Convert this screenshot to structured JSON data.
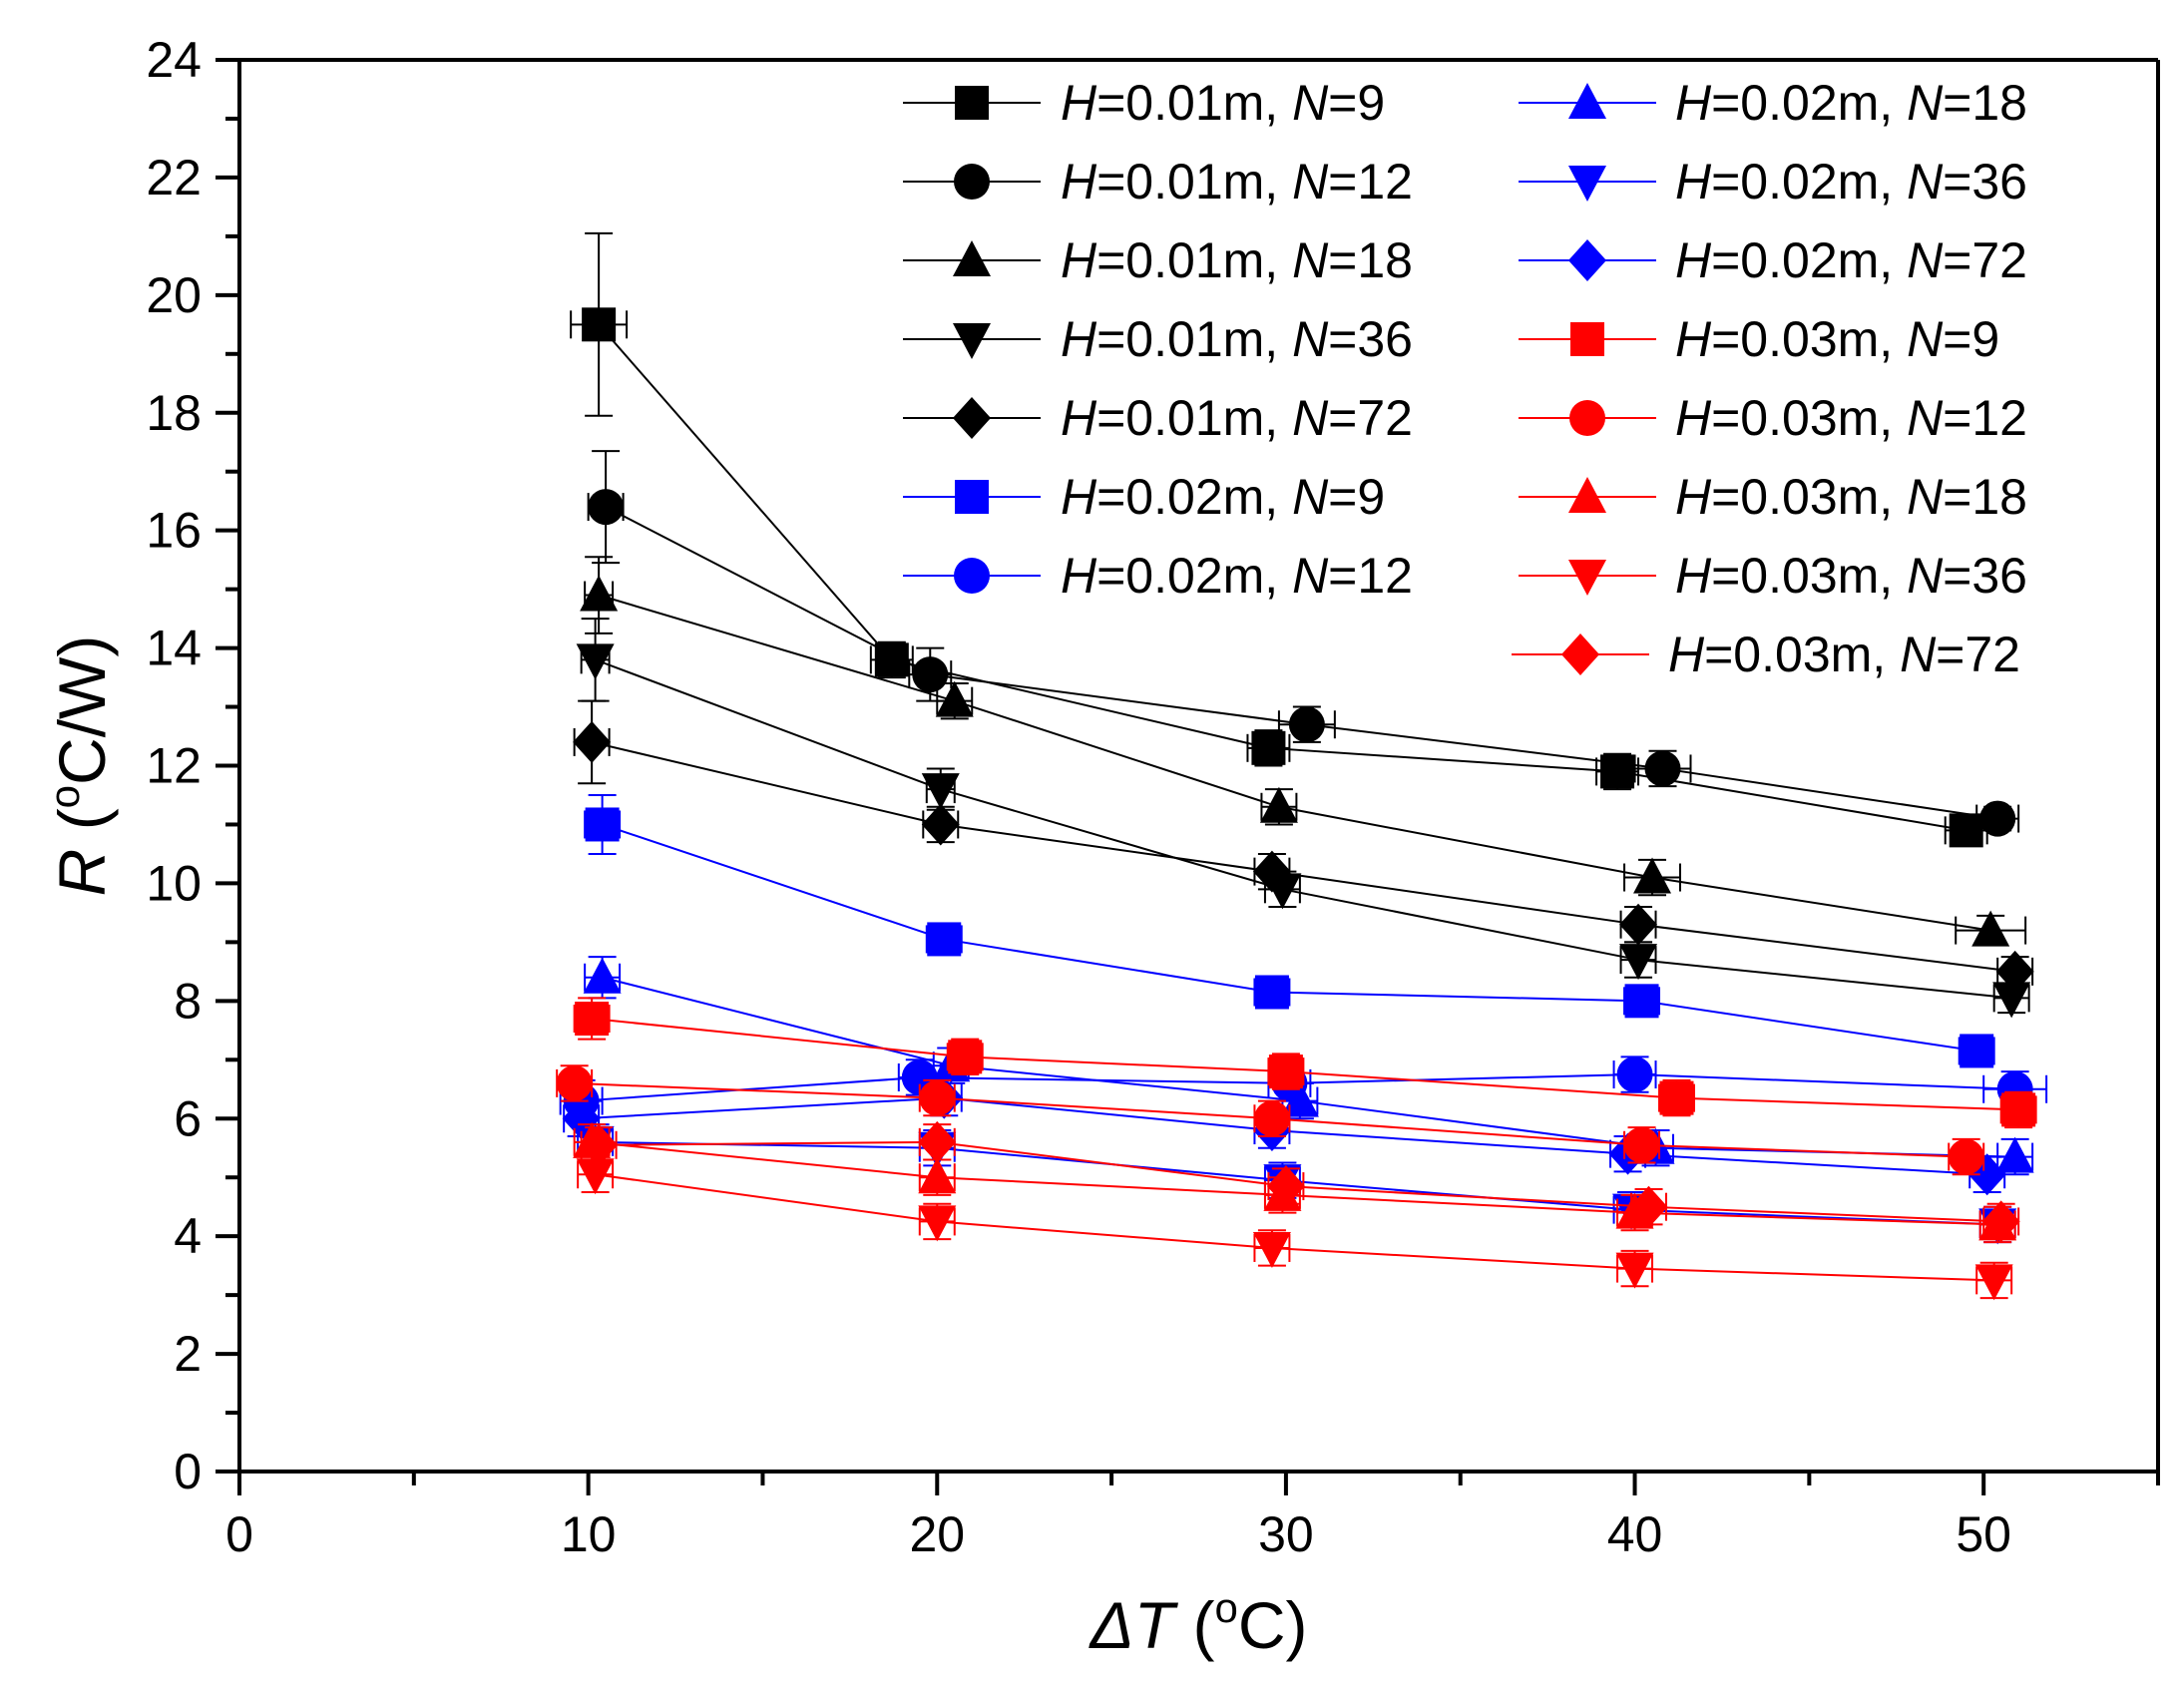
{
  "chart_data": {
    "type": "scatter",
    "xlabel": "ΔT (°C)",
    "ylabel": "R (°C/W)",
    "xlim": [
      0,
      55
    ],
    "ylim": [
      0,
      24
    ],
    "x_ticks": [
      0,
      10,
      20,
      30,
      40,
      50
    ],
    "y_ticks": [
      0,
      2,
      4,
      6,
      8,
      10,
      12,
      14,
      16,
      18,
      20,
      22,
      24
    ],
    "legend_position": "top-right",
    "colors": {
      "H=0.01m": "#000000",
      "H=0.02m": "#0000ff",
      "H=0.03m": "#ff0000"
    },
    "series": [
      {
        "name": "H=0.01m, N=9",
        "H": "0.01m",
        "N": "9",
        "color": "#000000",
        "marker": "square",
        "points": [
          {
            "x": 10.3,
            "y": 19.5,
            "yerr": 1.55,
            "xerr": 0.8
          },
          {
            "x": 18.7,
            "y": 13.8,
            "yerr": 0.3,
            "xerr": 0.6
          },
          {
            "x": 29.5,
            "y": 12.3,
            "yerr": 0.3,
            "xerr": 0.6
          },
          {
            "x": 39.5,
            "y": 11.9,
            "yerr": 0.3,
            "xerr": 0.6
          },
          {
            "x": 49.5,
            "y": 10.9,
            "yerr": 0.2,
            "xerr": 0.6
          }
        ]
      },
      {
        "name": "H=0.01m, N=12",
        "H": "0.01m",
        "N": "12",
        "color": "#000000",
        "marker": "circle",
        "points": [
          {
            "x": 10.5,
            "y": 16.4,
            "yerr": 0.95,
            "xerr": 0.5
          },
          {
            "x": 19.8,
            "y": 13.55,
            "yerr": 0.45,
            "xerr": 0.6
          },
          {
            "x": 30.6,
            "y": 12.7,
            "yerr": 0.3,
            "xerr": 0.8
          },
          {
            "x": 40.8,
            "y": 11.95,
            "yerr": 0.3,
            "xerr": 0.8
          },
          {
            "x": 50.4,
            "y": 11.1,
            "yerr": 0.2,
            "xerr": 0.6
          }
        ]
      },
      {
        "name": "H=0.01m, N=18",
        "H": "0.01m",
        "N": "18",
        "color": "#000000",
        "marker": "triangle-up",
        "points": [
          {
            "x": 10.3,
            "y": 14.9,
            "yerr": 0.65,
            "xerr": 0.4
          },
          {
            "x": 20.5,
            "y": 13.1,
            "yerr": 0.3,
            "xerr": 0.5
          },
          {
            "x": 29.8,
            "y": 11.3,
            "yerr": 0.3,
            "xerr": 0.5
          },
          {
            "x": 40.5,
            "y": 10.1,
            "yerr": 0.3,
            "xerr": 0.8
          },
          {
            "x": 50.2,
            "y": 9.2,
            "yerr": 0.25,
            "xerr": 1.0
          }
        ]
      },
      {
        "name": "H=0.01m, N=36",
        "H": "0.01m",
        "N": "36",
        "color": "#000000",
        "marker": "triangle-down",
        "points": [
          {
            "x": 10.2,
            "y": 13.8,
            "yerr": 0.7,
            "xerr": 0.4
          },
          {
            "x": 20.1,
            "y": 11.6,
            "yerr": 0.35,
            "xerr": 0.4
          },
          {
            "x": 29.9,
            "y": 9.9,
            "yerr": 0.3,
            "xerr": 0.5
          },
          {
            "x": 40.1,
            "y": 8.7,
            "yerr": 0.3,
            "xerr": 0.5
          },
          {
            "x": 50.8,
            "y": 8.05,
            "yerr": 0.25,
            "xerr": 0.5
          }
        ]
      },
      {
        "name": "H=0.01m, N=72",
        "H": "0.01m",
        "N": "72",
        "color": "#000000",
        "marker": "diamond",
        "points": [
          {
            "x": 10.1,
            "y": 12.4,
            "yerr": 0.7,
            "xerr": 0.5
          },
          {
            "x": 20.1,
            "y": 11.0,
            "yerr": 0.3,
            "xerr": 0.5
          },
          {
            "x": 29.6,
            "y": 10.2,
            "yerr": 0.3,
            "xerr": 0.5
          },
          {
            "x": 40.1,
            "y": 9.3,
            "yerr": 0.3,
            "xerr": 0.5
          },
          {
            "x": 50.9,
            "y": 8.5,
            "yerr": 0.25,
            "xerr": 0.5
          }
        ]
      },
      {
        "name": "H=0.02m, N=9",
        "H": "0.02m",
        "N": "9",
        "color": "#0000ff",
        "marker": "square",
        "points": [
          {
            "x": 10.4,
            "y": 11.0,
            "yerr": 0.5,
            "xerr": 0.5
          },
          {
            "x": 20.2,
            "y": 9.05,
            "yerr": 0.25,
            "xerr": 0.5
          },
          {
            "x": 29.6,
            "y": 8.15,
            "yerr": 0.2,
            "xerr": 0.5
          },
          {
            "x": 40.2,
            "y": 8.0,
            "yerr": 0.2,
            "xerr": 0.5
          },
          {
            "x": 49.8,
            "y": 7.15,
            "yerr": 0.2,
            "xerr": 0.5
          }
        ]
      },
      {
        "name": "H=0.02m, N=12",
        "H": "0.02m",
        "N": "12",
        "color": "#0000ff",
        "marker": "circle",
        "points": [
          {
            "x": 9.8,
            "y": 6.3,
            "yerr": 0.35,
            "xerr": 0.6
          },
          {
            "x": 19.5,
            "y": 6.7,
            "yerr": 0.3,
            "xerr": 0.6
          },
          {
            "x": 30.1,
            "y": 6.6,
            "yerr": 0.3,
            "xerr": 0.6
          },
          {
            "x": 40.0,
            "y": 6.75,
            "yerr": 0.3,
            "xerr": 0.6
          },
          {
            "x": 50.9,
            "y": 6.5,
            "yerr": 0.3,
            "xerr": 0.9
          }
        ]
      },
      {
        "name": "H=0.02m, N=18",
        "H": "0.02m",
        "N": "18",
        "color": "#0000ff",
        "marker": "triangle-up",
        "points": [
          {
            "x": 10.4,
            "y": 8.4,
            "yerr": 0.35,
            "xerr": 0.5
          },
          {
            "x": 20.4,
            "y": 6.9,
            "yerr": 0.3,
            "xerr": 0.5
          },
          {
            "x": 30.4,
            "y": 6.3,
            "yerr": 0.3,
            "xerr": 0.5
          },
          {
            "x": 40.6,
            "y": 5.5,
            "yerr": 0.3,
            "xerr": 0.5
          },
          {
            "x": 50.9,
            "y": 5.35,
            "yerr": 0.3,
            "xerr": 0.5
          }
        ]
      },
      {
        "name": "H=0.02m, N=36",
        "H": "0.02m",
        "N": "36",
        "color": "#0000ff",
        "marker": "triangle-down",
        "points": [
          {
            "x": 10.2,
            "y": 5.6,
            "yerr": 0.3,
            "xerr": 0.5
          },
          {
            "x": 20.0,
            "y": 5.5,
            "yerr": 0.3,
            "xerr": 0.5
          },
          {
            "x": 29.9,
            "y": 4.95,
            "yerr": 0.3,
            "xerr": 0.5
          },
          {
            "x": 39.9,
            "y": 4.45,
            "yerr": 0.3,
            "xerr": 0.5
          },
          {
            "x": 50.4,
            "y": 4.2,
            "yerr": 0.3,
            "xerr": 0.5
          }
        ]
      },
      {
        "name": "H=0.02m, N=72",
        "H": "0.02m",
        "N": "72",
        "color": "#0000ff",
        "marker": "diamond",
        "points": [
          {
            "x": 9.8,
            "y": 6.0,
            "yerr": 0.3,
            "xerr": 0.5
          },
          {
            "x": 20.2,
            "y": 6.35,
            "yerr": 0.3,
            "xerr": 0.5
          },
          {
            "x": 29.6,
            "y": 5.8,
            "yerr": 0.3,
            "xerr": 0.5
          },
          {
            "x": 39.8,
            "y": 5.4,
            "yerr": 0.3,
            "xerr": 0.5
          },
          {
            "x": 50.1,
            "y": 5.05,
            "yerr": 0.3,
            "xerr": 0.5
          }
        ]
      },
      {
        "name": "H=0.03m, N=9",
        "H": "0.03m",
        "N": "9",
        "color": "#ff0000",
        "marker": "square",
        "points": [
          {
            "x": 10.1,
            "y": 7.7,
            "yerr": 0.35,
            "xerr": 0.5
          },
          {
            "x": 20.8,
            "y": 7.05,
            "yerr": 0.3,
            "xerr": 0.5
          },
          {
            "x": 30.0,
            "y": 6.8,
            "yerr": 0.3,
            "xerr": 0.5
          },
          {
            "x": 41.2,
            "y": 6.35,
            "yerr": 0.3,
            "xerr": 0.5
          },
          {
            "x": 51.0,
            "y": 6.15,
            "yerr": 0.3,
            "xerr": 0.5
          }
        ]
      },
      {
        "name": "H=0.03m, N=12",
        "H": "0.03m",
        "N": "12",
        "color": "#ff0000",
        "marker": "circle",
        "points": [
          {
            "x": 9.6,
            "y": 6.6,
            "yerr": 0.3,
            "xerr": 0.5
          },
          {
            "x": 20.0,
            "y": 6.35,
            "yerr": 0.3,
            "xerr": 0.5
          },
          {
            "x": 29.6,
            "y": 6.0,
            "yerr": 0.3,
            "xerr": 0.5
          },
          {
            "x": 40.2,
            "y": 5.55,
            "yerr": 0.3,
            "xerr": 0.5
          },
          {
            "x": 49.5,
            "y": 5.35,
            "yerr": 0.3,
            "xerr": 0.5
          }
        ]
      },
      {
        "name": "H=0.03m, N=18",
        "H": "0.03m",
        "N": "18",
        "color": "#ff0000",
        "marker": "triangle-up",
        "points": [
          {
            "x": 10.1,
            "y": 5.6,
            "yerr": 0.3,
            "xerr": 0.5
          },
          {
            "x": 20.0,
            "y": 5.0,
            "yerr": 0.3,
            "xerr": 0.5
          },
          {
            "x": 29.9,
            "y": 4.7,
            "yerr": 0.3,
            "xerr": 0.5
          },
          {
            "x": 40.0,
            "y": 4.4,
            "yerr": 0.3,
            "xerr": 0.5
          },
          {
            "x": 50.4,
            "y": 4.2,
            "yerr": 0.3,
            "xerr": 0.5
          }
        ]
      },
      {
        "name": "H=0.03m, N=36",
        "H": "0.03m",
        "N": "36",
        "color": "#ff0000",
        "marker": "triangle-down",
        "points": [
          {
            "x": 10.2,
            "y": 5.05,
            "yerr": 0.3,
            "xerr": 0.5
          },
          {
            "x": 20.0,
            "y": 4.25,
            "yerr": 0.3,
            "xerr": 0.5
          },
          {
            "x": 29.6,
            "y": 3.8,
            "yerr": 0.3,
            "xerr": 0.5
          },
          {
            "x": 40.0,
            "y": 3.45,
            "yerr": 0.3,
            "xerr": 0.5
          },
          {
            "x": 50.3,
            "y": 3.25,
            "yerr": 0.3,
            "xerr": 0.5
          }
        ]
      },
      {
        "name": "H=0.03m, N=72",
        "H": "0.03m",
        "N": "72",
        "color": "#ff0000",
        "marker": "diamond",
        "points": [
          {
            "x": 10.3,
            "y": 5.55,
            "yerr": 0.3,
            "xerr": 0.5
          },
          {
            "x": 20.0,
            "y": 5.6,
            "yerr": 0.3,
            "xerr": 0.5
          },
          {
            "x": 30.0,
            "y": 4.85,
            "yerr": 0.3,
            "xerr": 0.5
          },
          {
            "x": 40.4,
            "y": 4.5,
            "yerr": 0.3,
            "xerr": 0.5
          },
          {
            "x": 50.5,
            "y": 4.25,
            "yerr": 0.3,
            "xerr": 0.5
          }
        ]
      }
    ]
  }
}
